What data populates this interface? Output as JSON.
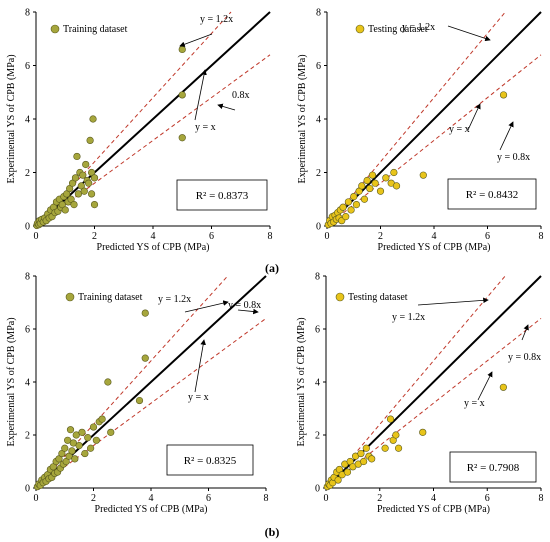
{
  "figure": {
    "part_labels": [
      "(a)",
      "(b)"
    ]
  },
  "chart_data": [
    {
      "type": "scatter",
      "xlabel": "Predicted YS of CPB (MPa)",
      "ylabel": "Experimental YS of CPB (MPa)",
      "xlim": [
        0,
        8
      ],
      "ylim": [
        0,
        8
      ],
      "xticks": [
        "0",
        "2",
        "4",
        "6",
        "8"
      ],
      "yticks": [
        "0",
        "2",
        "4",
        "6",
        "8"
      ],
      "legend": "Training dataset",
      "marker_color": "#a6a63c",
      "r2": "R² = 0.8373",
      "line_labels": {
        "upper": "y = 1.2x",
        "middle": "y = x",
        "lower": "0.8x"
      },
      "points": [
        [
          0.03,
          0.02
        ],
        [
          0.05,
          0.1
        ],
        [
          0.1,
          0.05
        ],
        [
          0.12,
          0.2
        ],
        [
          0.15,
          0.1
        ],
        [
          0.2,
          0.25
        ],
        [
          0.25,
          0.15
        ],
        [
          0.3,
          0.3
        ],
        [
          0.35,
          0.2
        ],
        [
          0.4,
          0.45
        ],
        [
          0.45,
          0.3
        ],
        [
          0.5,
          0.6
        ],
        [
          0.55,
          0.35
        ],
        [
          0.6,
          0.7
        ],
        [
          0.65,
          0.5
        ],
        [
          0.7,
          0.9
        ],
        [
          0.75,
          0.55
        ],
        [
          0.8,
          1.0
        ],
        [
          0.85,
          0.7
        ],
        [
          0.9,
          0.8
        ],
        [
          0.95,
          1.1
        ],
        [
          1.0,
          0.6
        ],
        [
          1.05,
          1.2
        ],
        [
          1.1,
          0.9
        ],
        [
          1.15,
          1.4
        ],
        [
          1.2,
          1.0
        ],
        [
          1.25,
          1.6
        ],
        [
          1.3,
          0.8
        ],
        [
          1.35,
          1.8
        ],
        [
          1.4,
          2.6
        ],
        [
          1.45,
          1.2
        ],
        [
          1.5,
          2.0
        ],
        [
          1.55,
          1.5
        ],
        [
          1.6,
          1.9
        ],
        [
          1.65,
          1.3
        ],
        [
          1.7,
          2.3
        ],
        [
          1.75,
          1.7
        ],
        [
          1.8,
          1.6
        ],
        [
          1.85,
          3.2
        ],
        [
          1.9,
          2.0
        ],
        [
          1.95,
          4.0
        ],
        [
          2.0,
          1.8
        ],
        [
          1.9,
          1.2
        ],
        [
          2.0,
          0.8
        ],
        [
          5.0,
          6.6
        ],
        [
          5.0,
          4.9
        ],
        [
          5.0,
          3.3
        ]
      ]
    },
    {
      "type": "scatter",
      "xlabel": "Predicted YS of CPB (MPa)",
      "ylabel": "Experimental YS of CPB (MPa)",
      "xlim": [
        0,
        8
      ],
      "ylim": [
        0,
        8
      ],
      "xticks": [
        "0",
        "2",
        "4",
        "6",
        "8"
      ],
      "yticks": [
        "0",
        "2",
        "4",
        "6",
        "8"
      ],
      "legend": "Testing dataset",
      "marker_color": "#e8c41a",
      "r2": "R² = 0.8432",
      "line_labels": {
        "upper": "y = 1.2x",
        "middle": "y = x",
        "lower": "y = 0.8x"
      },
      "points": [
        [
          0.05,
          0.05
        ],
        [
          0.1,
          0.2
        ],
        [
          0.15,
          0.1
        ],
        [
          0.2,
          0.35
        ],
        [
          0.25,
          0.15
        ],
        [
          0.3,
          0.4
        ],
        [
          0.35,
          0.25
        ],
        [
          0.4,
          0.5
        ],
        [
          0.45,
          0.3
        ],
        [
          0.5,
          0.6
        ],
        [
          0.55,
          0.2
        ],
        [
          0.6,
          0.7
        ],
        [
          0.7,
          0.35
        ],
        [
          0.8,
          0.9
        ],
        [
          0.9,
          0.6
        ],
        [
          1.0,
          1.1
        ],
        [
          1.1,
          0.8
        ],
        [
          1.2,
          1.3
        ],
        [
          1.3,
          1.5
        ],
        [
          1.4,
          1.0
        ],
        [
          1.5,
          1.7
        ],
        [
          1.6,
          1.4
        ],
        [
          1.7,
          1.9
        ],
        [
          1.8,
          1.6
        ],
        [
          2.0,
          1.3
        ],
        [
          2.2,
          1.8
        ],
        [
          2.4,
          1.6
        ],
        [
          2.5,
          2.0
        ],
        [
          2.6,
          1.5
        ],
        [
          3.6,
          1.9
        ],
        [
          6.6,
          4.9
        ]
      ]
    },
    {
      "type": "scatter",
      "xlabel": "Predicted YS of CPB (MPa)",
      "ylabel": "Experimental YS of CPB (MPa)",
      "xlim": [
        0,
        8
      ],
      "ylim": [
        0,
        8
      ],
      "xticks": [
        "0",
        "2",
        "4",
        "6",
        "8"
      ],
      "yticks": [
        "0",
        "2",
        "4",
        "6",
        "8"
      ],
      "legend": "Training dataset",
      "marker_color": "#a6a63c",
      "r2": "R² = 0.8325",
      "line_labels": {
        "upper": "y = 1.2x",
        "middle": "y = x",
        "lower": "y = 0.8x"
      },
      "points": [
        [
          0.05,
          0.05
        ],
        [
          0.1,
          0.15
        ],
        [
          0.15,
          0.1
        ],
        [
          0.2,
          0.3
        ],
        [
          0.25,
          0.2
        ],
        [
          0.3,
          0.4
        ],
        [
          0.35,
          0.25
        ],
        [
          0.4,
          0.5
        ],
        [
          0.45,
          0.35
        ],
        [
          0.5,
          0.7
        ],
        [
          0.55,
          0.4
        ],
        [
          0.6,
          0.8
        ],
        [
          0.65,
          0.55
        ],
        [
          0.7,
          1.0
        ],
        [
          0.75,
          0.6
        ],
        [
          0.8,
          1.1
        ],
        [
          0.85,
          0.75
        ],
        [
          0.9,
          1.3
        ],
        [
          0.95,
          0.9
        ],
        [
          1.0,
          1.5
        ],
        [
          1.05,
          1.0
        ],
        [
          1.1,
          1.8
        ],
        [
          1.15,
          1.2
        ],
        [
          1.2,
          2.2
        ],
        [
          1.25,
          1.4
        ],
        [
          1.3,
          1.7
        ],
        [
          1.35,
          1.1
        ],
        [
          1.4,
          2.0
        ],
        [
          1.5,
          1.6
        ],
        [
          1.6,
          2.1
        ],
        [
          1.7,
          1.3
        ],
        [
          1.8,
          1.9
        ],
        [
          1.9,
          1.5
        ],
        [
          2.0,
          2.3
        ],
        [
          2.1,
          1.8
        ],
        [
          2.2,
          2.5
        ],
        [
          2.3,
          2.6
        ],
        [
          2.5,
          4.0
        ],
        [
          2.6,
          2.1
        ],
        [
          3.6,
          3.3
        ],
        [
          3.8,
          4.9
        ],
        [
          3.8,
          6.6
        ]
      ]
    },
    {
      "type": "scatter",
      "xlabel": "Predicted YS of CPB (MPa)",
      "ylabel": "Experimental YS of CPB (MPa)",
      "xlim": [
        0,
        8
      ],
      "ylim": [
        0,
        8
      ],
      "xticks": [
        "0",
        "2",
        "4",
        "6",
        "8"
      ],
      "yticks": [
        "0",
        "2",
        "4",
        "6",
        "8"
      ],
      "legend": "Testing dataset",
      "marker_color": "#e8c41a",
      "r2": "R² = 0.7908",
      "line_labels": {
        "upper": "y = 1.2x",
        "middle": "y = x",
        "lower": "y = 0.8x"
      },
      "points": [
        [
          0.05,
          0.05
        ],
        [
          0.1,
          0.15
        ],
        [
          0.15,
          0.1
        ],
        [
          0.2,
          0.3
        ],
        [
          0.25,
          0.2
        ],
        [
          0.3,
          0.4
        ],
        [
          0.4,
          0.6
        ],
        [
          0.45,
          0.3
        ],
        [
          0.5,
          0.7
        ],
        [
          0.6,
          0.5
        ],
        [
          0.7,
          0.9
        ],
        [
          0.8,
          0.6
        ],
        [
          0.9,
          1.0
        ],
        [
          1.0,
          0.8
        ],
        [
          1.1,
          1.2
        ],
        [
          1.2,
          0.9
        ],
        [
          1.3,
          1.3
        ],
        [
          1.4,
          1.0
        ],
        [
          1.5,
          1.5
        ],
        [
          1.6,
          1.2
        ],
        [
          1.7,
          1.1
        ],
        [
          2.2,
          1.5
        ],
        [
          2.4,
          2.6
        ],
        [
          2.5,
          1.8
        ],
        [
          2.6,
          2.0
        ],
        [
          2.7,
          1.5
        ],
        [
          3.6,
          2.1
        ],
        [
          6.6,
          3.8
        ]
      ]
    }
  ]
}
